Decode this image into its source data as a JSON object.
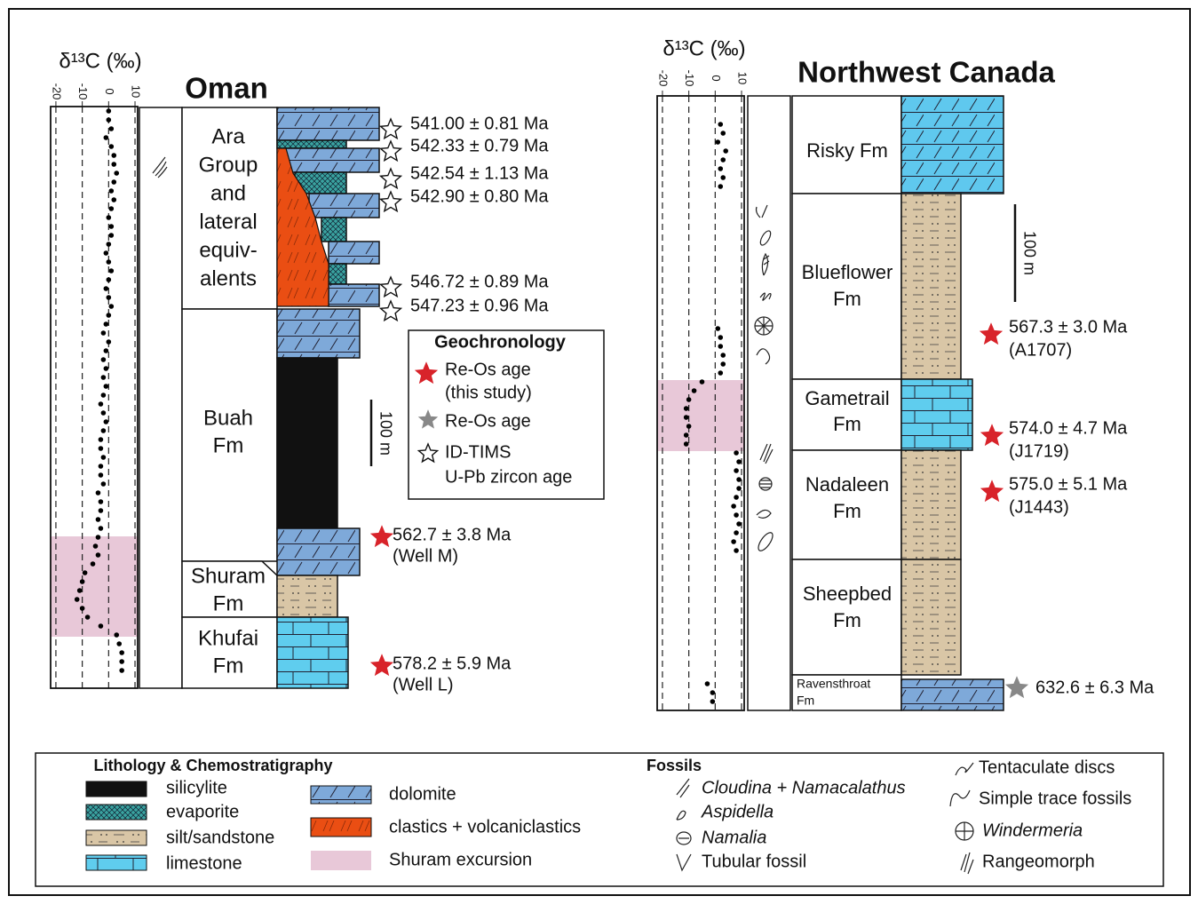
{
  "oman": {
    "title": "Oman",
    "d13c": {
      "label": "δ¹³C (‰)",
      "xlim": [
        -22,
        11
      ],
      "xticks": [
        -20,
        -10,
        0,
        10
      ],
      "values": [
        0,
        0,
        1,
        -1,
        1,
        2,
        2,
        3,
        2,
        1,
        2,
        1,
        0,
        1,
        1,
        0,
        -1,
        0,
        1,
        0,
        -1,
        0,
        1,
        0,
        -1,
        -2,
        0,
        -1,
        -2,
        -1,
        -2,
        -1,
        -2,
        -3,
        -2,
        -1,
        -2,
        -3,
        -3,
        -2,
        -3,
        -3,
        -2,
        -4,
        -3,
        -3,
        -4,
        -3,
        -4,
        -5,
        -4,
        -6,
        -9,
        -10,
        -11,
        -12,
        -10,
        -8,
        -3,
        3,
        4,
        5,
        5,
        5
      ]
    },
    "formations": [
      {
        "lines": [
          "Ara",
          "Group",
          "and",
          "lateral",
          "equiv-",
          "alents"
        ]
      },
      {
        "lines": [
          "Buah",
          "Fm"
        ]
      },
      {
        "lines": [
          "Shuram",
          "Fm"
        ]
      },
      {
        "lines": [
          "Khufai",
          "Fm"
        ]
      }
    ],
    "ages": [
      {
        "lines": [
          "541.00 ± 0.81 Ma"
        ]
      },
      {
        "lines": [
          "542.33 ± 0.79 Ma"
        ]
      },
      {
        "lines": [
          "542.54 ± 1.13 Ma"
        ]
      },
      {
        "lines": [
          "542.90 ± 0.80 Ma"
        ]
      },
      {
        "lines": [
          "546.72 ± 0.89 Ma"
        ]
      },
      {
        "lines": [
          "547.23 ± 0.96 Ma"
        ]
      },
      {
        "lines": [
          "562.7 ± 3.8 Ma",
          "(Well M)"
        ]
      },
      {
        "lines": [
          "578.2 ± 5.9 Ma",
          "(Well L)"
        ]
      }
    ],
    "scale": "100 m"
  },
  "canada": {
    "title": "Northwest Canada",
    "d13c": {
      "label": "δ¹³C (‰)",
      "xlim": [
        -22,
        11
      ],
      "xticks": [
        -20,
        -10,
        0,
        10
      ],
      "values": [
        null,
        null,
        null,
        2,
        3,
        1,
        4,
        3,
        2,
        3,
        2,
        null,
        null,
        null,
        null,
        null,
        null,
        null,
        null,
        null,
        null,
        null,
        null,
        null,
        null,
        null,
        1,
        2,
        2,
        3,
        3,
        2,
        -5,
        -8,
        -10,
        -11,
        -11,
        -10,
        -11,
        -11,
        8,
        9,
        8,
        9,
        9,
        8,
        7,
        8,
        9,
        8,
        7,
        8,
        null,
        null,
        null,
        null,
        null,
        null,
        null,
        null,
        null,
        null,
        null,
        null,
        null,
        null,
        -3,
        -1,
        -1
      ]
    },
    "formations": [
      {
        "lines": [
          "Risky Fm"
        ]
      },
      {
        "lines": [
          "Blueflower",
          "Fm"
        ]
      },
      {
        "lines": [
          "Gametrail",
          "Fm"
        ]
      },
      {
        "lines": [
          "Nadaleen",
          "Fm"
        ]
      },
      {
        "lines": [
          "Sheepbed",
          "Fm"
        ]
      },
      {
        "lines": [
          "Ravensthroat",
          "Fm"
        ]
      }
    ],
    "ages": [
      {
        "lines": [
          "567.3 ± 3.0 Ma",
          "(A1707)"
        ]
      },
      {
        "lines": [
          "574.0 ± 4.7 Ma",
          "(J1719)"
        ]
      },
      {
        "lines": [
          "575.0 ± 5.1 Ma",
          "(J1443)"
        ]
      },
      {
        "lines": [
          "632.6 ± 6.3 Ma"
        ]
      }
    ],
    "scale": "100 m"
  },
  "geochronology": {
    "title": "Geochronology",
    "items": [
      {
        "lines": [
          "Re-Os age",
          "(this study)"
        ]
      },
      {
        "lines": [
          "Re-Os age"
        ]
      },
      {
        "lines": [
          "ID-TIMS",
          "U-Pb zircon age"
        ]
      }
    ]
  },
  "legend": {
    "lithology_title": "Lithology & Chemostratigraphy",
    "lithology": [
      "silicylite",
      "evaporite",
      "silt/sandstone",
      "limestone",
      "dolomite",
      "clastics + volcaniclastics",
      "Shuram excursion"
    ],
    "fossils_title": "Fossils",
    "fossils": [
      "Cloudina + Namacalathus",
      "Aspidella",
      "Namalia",
      "Tubular fossil",
      "Tentaculate discs",
      "Simple trace fossils",
      "Windermeria",
      "Rangeomorph"
    ]
  }
}
